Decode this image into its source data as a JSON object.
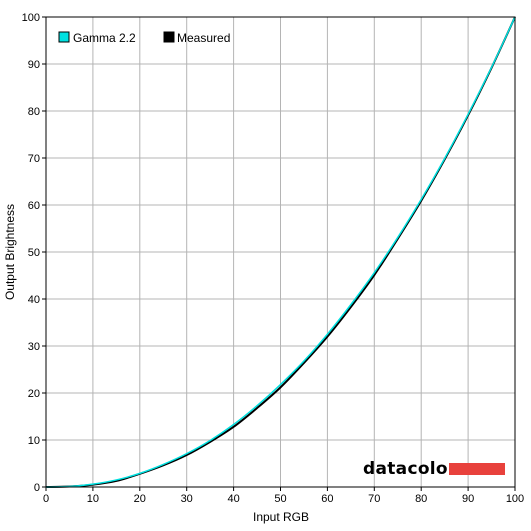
{
  "chart_data": {
    "type": "line",
    "xlabel": "Input RGB",
    "ylabel": "Output Brightness",
    "xlim": [
      0,
      100
    ],
    "ylim": [
      0,
      100
    ],
    "xticks": [
      0,
      10,
      20,
      30,
      40,
      50,
      60,
      70,
      80,
      90,
      100
    ],
    "yticks": [
      0,
      10,
      20,
      30,
      40,
      50,
      60,
      70,
      80,
      90,
      100
    ],
    "grid": true,
    "legend_position": "top-left",
    "x": [
      0,
      5,
      10,
      15,
      20,
      25,
      30,
      35,
      40,
      45,
      50,
      55,
      60,
      65,
      70,
      75,
      80,
      85,
      90,
      95,
      100
    ],
    "series": [
      {
        "name": "Gamma 2.2",
        "color": "#00e0e0",
        "values": [
          0,
          0.1,
          0.6,
          1.5,
          2.9,
          4.8,
          7.1,
          9.9,
          13.3,
          17.3,
          21.8,
          26.8,
          32.5,
          38.8,
          45.6,
          53.1,
          61.2,
          69.9,
          79.3,
          89.3,
          100
        ]
      },
      {
        "name": "Measured",
        "color": "#000000",
        "values": [
          0,
          0.1,
          0.5,
          1.3,
          2.8,
          4.6,
          6.8,
          9.6,
          12.8,
          16.8,
          21.2,
          26.4,
          32.0,
          38.3,
          45.1,
          52.8,
          60.9,
          69.7,
          79.1,
          89.2,
          100
        ]
      }
    ]
  },
  "logo": {
    "text": "datacolor",
    "bar_color": "#e8413c"
  }
}
